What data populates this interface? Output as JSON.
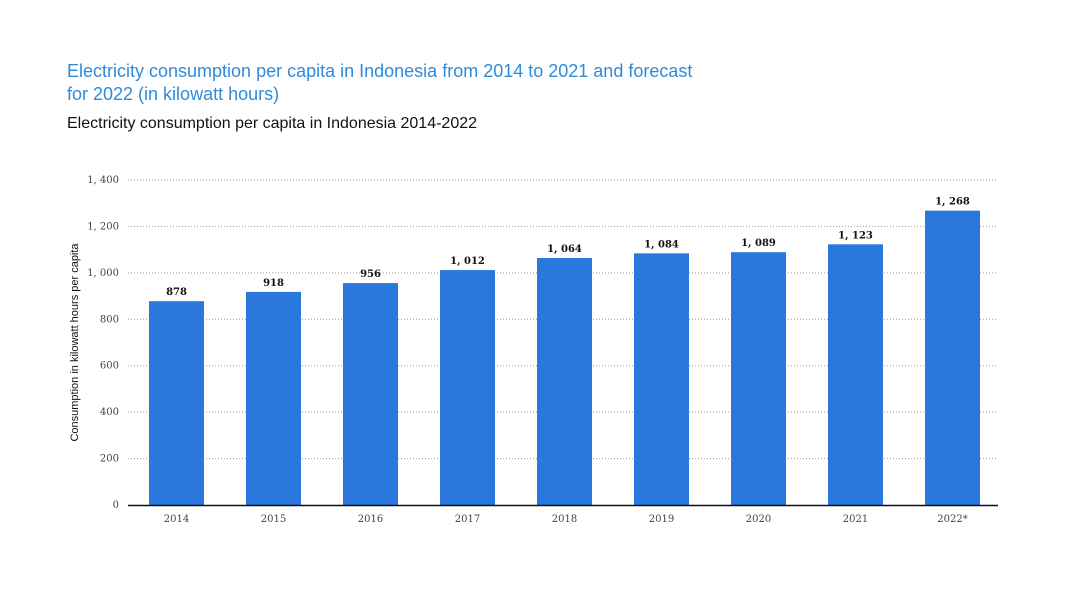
{
  "chart_data": {
    "type": "bar",
    "title": "Electricity consumption per capita in Indonesia from 2014 to 2021 and forecast for 2022 (in kilowatt hours)",
    "subtitle": "Electricity consumption per capita in Indonesia 2014-2022",
    "xlabel": "",
    "ylabel": "Consumption in kilowatt hours per capita",
    "categories": [
      "2014",
      "2015",
      "2016",
      "2017",
      "2018",
      "2019",
      "2020",
      "2021",
      "2022*"
    ],
    "values": [
      878,
      918,
      956,
      1012,
      1064,
      1084,
      1089,
      1123,
      1268
    ],
    "value_labels": [
      "878",
      "918",
      "956",
      "1, 012",
      "1, 064",
      "1, 084",
      "1, 089",
      "1, 123",
      "1, 268"
    ],
    "ylim": [
      0,
      1400
    ],
    "yticks": [
      0,
      200,
      400,
      600,
      800,
      1000,
      1200,
      1400
    ],
    "ytick_labels": [
      "0",
      "200",
      "400",
      "600",
      "800",
      "1, 000",
      "1, 200",
      "1, 400"
    ],
    "grid": true,
    "bar_color": "#2a77dd",
    "title_color": "#2f8bd9"
  }
}
